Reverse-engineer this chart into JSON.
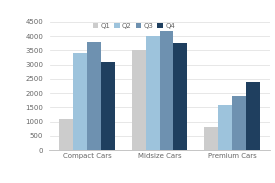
{
  "categories": [
    "Compact Cars",
    "Midsize Cars",
    "Premium Cars"
  ],
  "series": {
    "Q1": [
      1100,
      3500,
      800
    ],
    "Q2": [
      3400,
      4000,
      1600
    ],
    "Q3": [
      3800,
      4200,
      1900
    ],
    "Q4": [
      3100,
      3750,
      2400
    ]
  },
  "colors": {
    "Q1": "#cccccc",
    "Q2": "#9dc3dc",
    "Q3": "#6e91b0",
    "Q4": "#1f3f5f"
  },
  "ylim": [
    0,
    4500
  ],
  "yticks": [
    0,
    500,
    1000,
    1500,
    2000,
    2500,
    3000,
    3500,
    4000,
    4500
  ],
  "bar_width": 0.19,
  "figsize": [
    2.75,
    1.83
  ],
  "dpi": 100
}
